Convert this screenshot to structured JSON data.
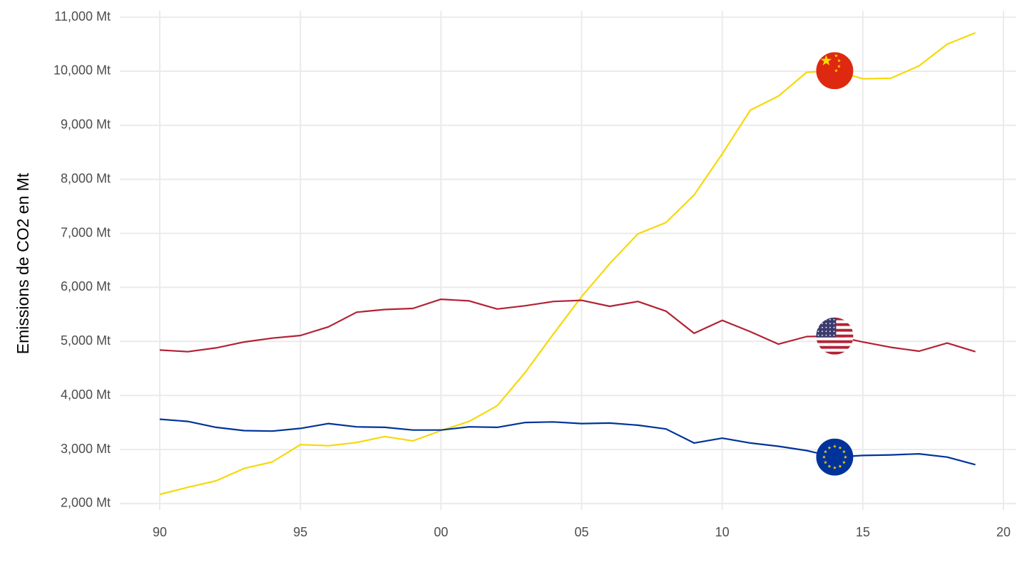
{
  "chart_data": {
    "type": "line",
    "y_label": "Emissions de CO2 en Mt",
    "categories": [
      "90",
      null,
      null,
      null,
      null,
      "95",
      null,
      null,
      null,
      null,
      "00",
      null,
      null,
      null,
      null,
      "05",
      null,
      null,
      null,
      null,
      "10",
      null,
      null,
      null,
      null,
      "15",
      null,
      null,
      null,
      null,
      "20"
    ],
    "series": [
      {
        "color": "#f5d90a",
        "values": [
          2170,
          2300,
          2420,
          2650,
          2770,
          3090,
          3070,
          3130,
          3240,
          3160,
          3350,
          3520,
          3810,
          4430,
          5140,
          5830,
          6440,
          6990,
          7200,
          7710,
          8470,
          9280,
          9540,
          9980,
          10010,
          9860,
          9870,
          10100,
          10500,
          10710,
          null
        ]
      },
      {
        "color": "#b22234",
        "values": [
          4840,
          4810,
          4880,
          4990,
          5060,
          5110,
          5270,
          5540,
          5590,
          5610,
          5780,
          5750,
          5600,
          5660,
          5740,
          5760,
          5650,
          5740,
          5560,
          5150,
          5390,
          5180,
          4950,
          5090,
          5100,
          4990,
          4890,
          4820,
          4970,
          4810,
          null
        ]
      },
      {
        "color": "#003399",
        "values": [
          3560,
          3520,
          3410,
          3350,
          3340,
          3390,
          3480,
          3420,
          3410,
          3360,
          3360,
          3420,
          3410,
          3500,
          3510,
          3480,
          3490,
          3450,
          3380,
          3120,
          3210,
          3120,
          3060,
          2980,
          2860,
          2890,
          2900,
          2920,
          2860,
          2720,
          null
        ]
      }
    ],
    "ylim": [
      1880,
      11120
    ],
    "yticks": [
      {
        "value": 2000,
        "label": "2,000 Mt"
      },
      {
        "value": 3000,
        "label": "3,000 Mt"
      },
      {
        "value": 4000,
        "label": "4,000 Mt"
      },
      {
        "value": 5000,
        "label": "5,000 Mt"
      },
      {
        "value": 6000,
        "label": "6,000 Mt"
      },
      {
        "value": 7000,
        "label": "7,000 Mt"
      },
      {
        "value": 8000,
        "label": "8,000 Mt"
      },
      {
        "value": 9000,
        "label": "9,000 Mt"
      },
      {
        "value": 10000,
        "label": "10,000 Mt"
      },
      {
        "value": 11000,
        "label": "11,000 Mt"
      }
    ],
    "grid": true
  }
}
